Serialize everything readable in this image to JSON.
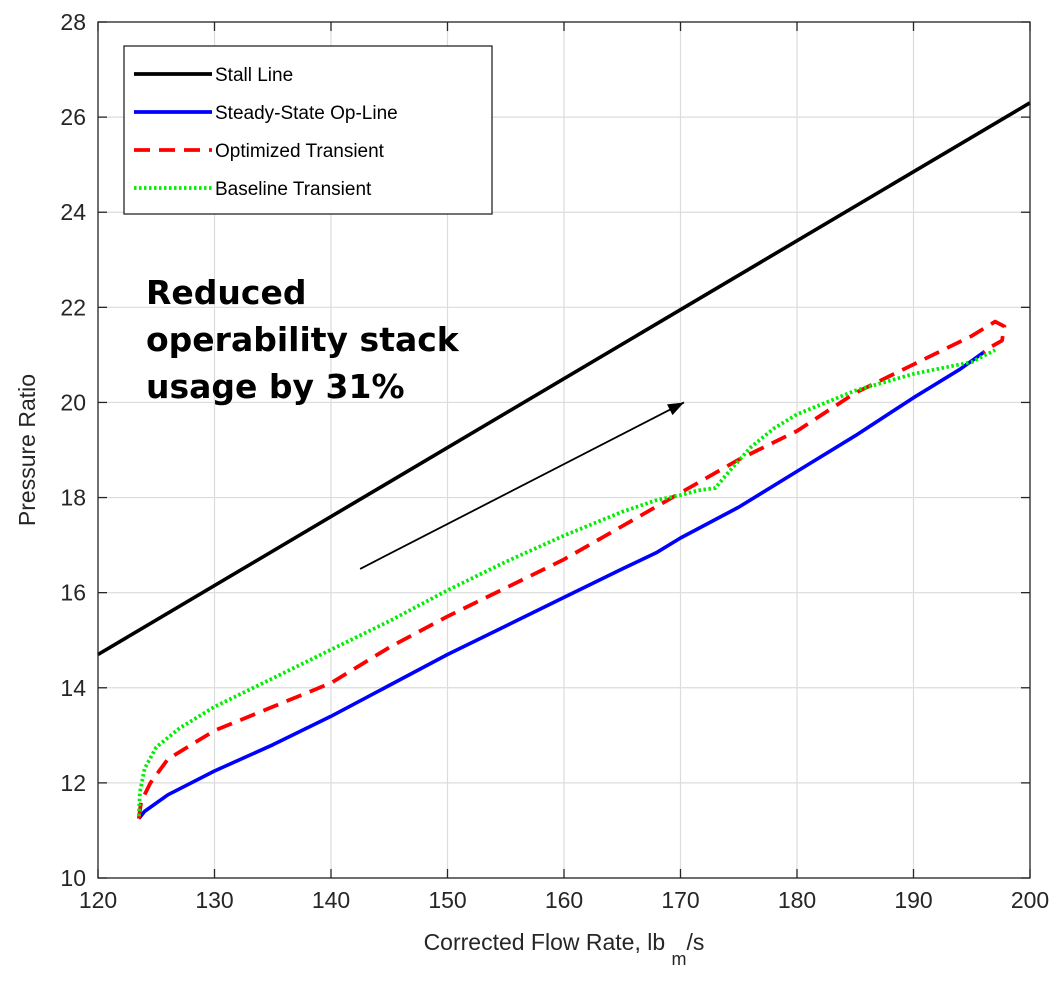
{
  "chart_data": {
    "type": "line",
    "xlabel": "Corrected Flow Rate, lb",
    "xlabel_sub": "m",
    "xlabel_suffix": "/s",
    "ylabel": "Pressure Ratio",
    "xlim": [
      120,
      200
    ],
    "ylim": [
      10,
      28
    ],
    "xticks": [
      120,
      130,
      140,
      150,
      160,
      170,
      180,
      190,
      200
    ],
    "yticks": [
      10,
      12,
      14,
      16,
      18,
      20,
      22,
      24,
      26,
      28
    ],
    "grid": true,
    "legend_position": "top-left",
    "series": [
      {
        "name": "Stall Line",
        "color": "#000000",
        "style": "solid",
        "points": [
          [
            120,
            14.7
          ],
          [
            200,
            26.3
          ]
        ]
      },
      {
        "name": "Steady-State Op-Line",
        "color": "#0000ff",
        "style": "solid",
        "points": [
          [
            123.5,
            11.25
          ],
          [
            124,
            11.4
          ],
          [
            126,
            11.75
          ],
          [
            130,
            12.25
          ],
          [
            135,
            12.8
          ],
          [
            140,
            13.4
          ],
          [
            145,
            14.05
          ],
          [
            150,
            14.7
          ],
          [
            155,
            15.3
          ],
          [
            160,
            15.9
          ],
          [
            165,
            16.5
          ],
          [
            168,
            16.85
          ],
          [
            170,
            17.15
          ],
          [
            175,
            17.8
          ],
          [
            180,
            18.55
          ],
          [
            185,
            19.3
          ],
          [
            190,
            20.1
          ],
          [
            194,
            20.7
          ],
          [
            196,
            21.05
          ]
        ]
      },
      {
        "name": "Optimized Transient",
        "color": "#ff0000",
        "style": "dashed",
        "points": [
          [
            123.5,
            11.25
          ],
          [
            123.7,
            11.6
          ],
          [
            124.5,
            12.0
          ],
          [
            126,
            12.5
          ],
          [
            130,
            13.1
          ],
          [
            135,
            13.6
          ],
          [
            140,
            14.1
          ],
          [
            145,
            14.85
          ],
          [
            150,
            15.5
          ],
          [
            155,
            16.1
          ],
          [
            160,
            16.7
          ],
          [
            165,
            17.4
          ],
          [
            170,
            18.1
          ],
          [
            175,
            18.8
          ],
          [
            180,
            19.4
          ],
          [
            185,
            20.2
          ],
          [
            190,
            20.8
          ],
          [
            195,
            21.4
          ],
          [
            197,
            21.7
          ],
          [
            197.8,
            21.6
          ],
          [
            197.6,
            21.3
          ],
          [
            196.5,
            21.15
          ],
          [
            196,
            21.05
          ]
        ]
      },
      {
        "name": "Baseline Transient",
        "color": "#00ee00",
        "style": "dotted",
        "points": [
          [
            123.5,
            11.3
          ],
          [
            123.6,
            11.8
          ],
          [
            124,
            12.3
          ],
          [
            125,
            12.75
          ],
          [
            127,
            13.15
          ],
          [
            130,
            13.6
          ],
          [
            135,
            14.2
          ],
          [
            140,
            14.8
          ],
          [
            145,
            15.4
          ],
          [
            150,
            16.05
          ],
          [
            155,
            16.65
          ],
          [
            160,
            17.2
          ],
          [
            165,
            17.7
          ],
          [
            168,
            17.95
          ],
          [
            170,
            18.05
          ],
          [
            171.5,
            18.15
          ],
          [
            173,
            18.2
          ],
          [
            174,
            18.5
          ],
          [
            176,
            19.05
          ],
          [
            178,
            19.45
          ],
          [
            180,
            19.75
          ],
          [
            185,
            20.25
          ],
          [
            190,
            20.6
          ],
          [
            195,
            20.85
          ],
          [
            197,
            21.1
          ]
        ]
      }
    ],
    "annotations": [
      {
        "lines": [
          "Reduced",
          "operability stack",
          "usage by 31%"
        ]
      }
    ],
    "arrow": {
      "from": [
        142.5,
        16.5
      ],
      "to": [
        170.3,
        20.0
      ]
    }
  }
}
